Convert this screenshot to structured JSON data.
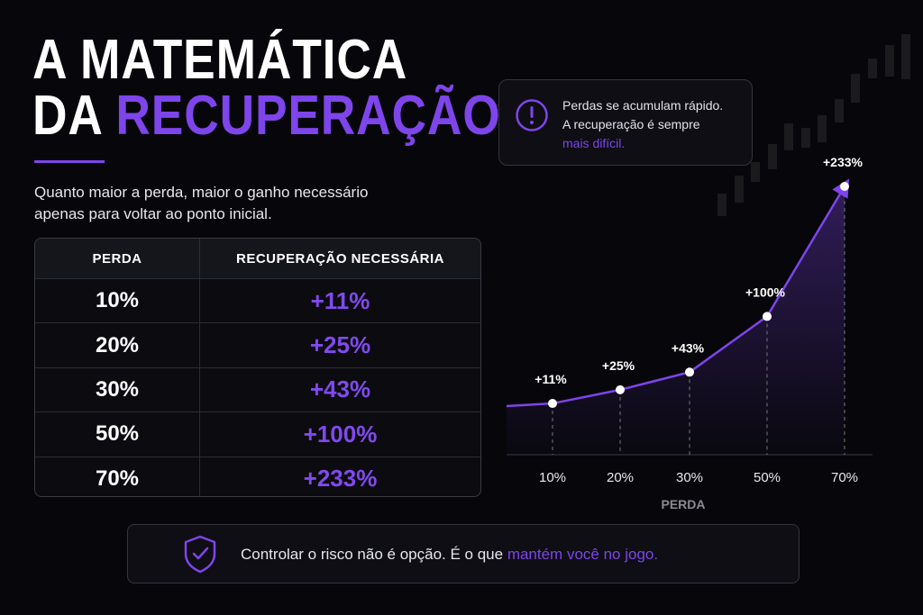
{
  "header": {
    "title_line1": "A MATEMÁTICA",
    "title_line2_plain": "DA",
    "title_line2_highlight": "RECUPERAÇÃO",
    "subtitle": "Quanto maior a perda, maior o ganho necessário apenas para voltar ao ponto inicial."
  },
  "table": {
    "columns": [
      "PERDA",
      "RECUPERAÇÃO NECESSÁRIA"
    ],
    "rows": [
      [
        "10%",
        "+11%"
      ],
      [
        "20%",
        "+25%"
      ],
      [
        "30%",
        "+43%"
      ],
      [
        "50%",
        "+100%"
      ],
      [
        "70%",
        "+233%"
      ]
    ]
  },
  "callout": {
    "line1": "Perdas se acumulam rápido.",
    "line2": "A recuperação é sempre",
    "highlight": "mais difícil."
  },
  "chart_data": {
    "type": "line",
    "categories": [
      "10%",
      "20%",
      "30%",
      "50%",
      "70%"
    ],
    "values": [
      11,
      25,
      43,
      100,
      233
    ],
    "value_labels": [
      "+11%",
      "+25%",
      "+43%",
      "+100%",
      "+233%"
    ],
    "x_label": "PERDA",
    "color": "#7e45ea"
  },
  "footer": {
    "text": "Controlar o risco não é opção. É o que",
    "highlight": "mantém você no jogo."
  }
}
